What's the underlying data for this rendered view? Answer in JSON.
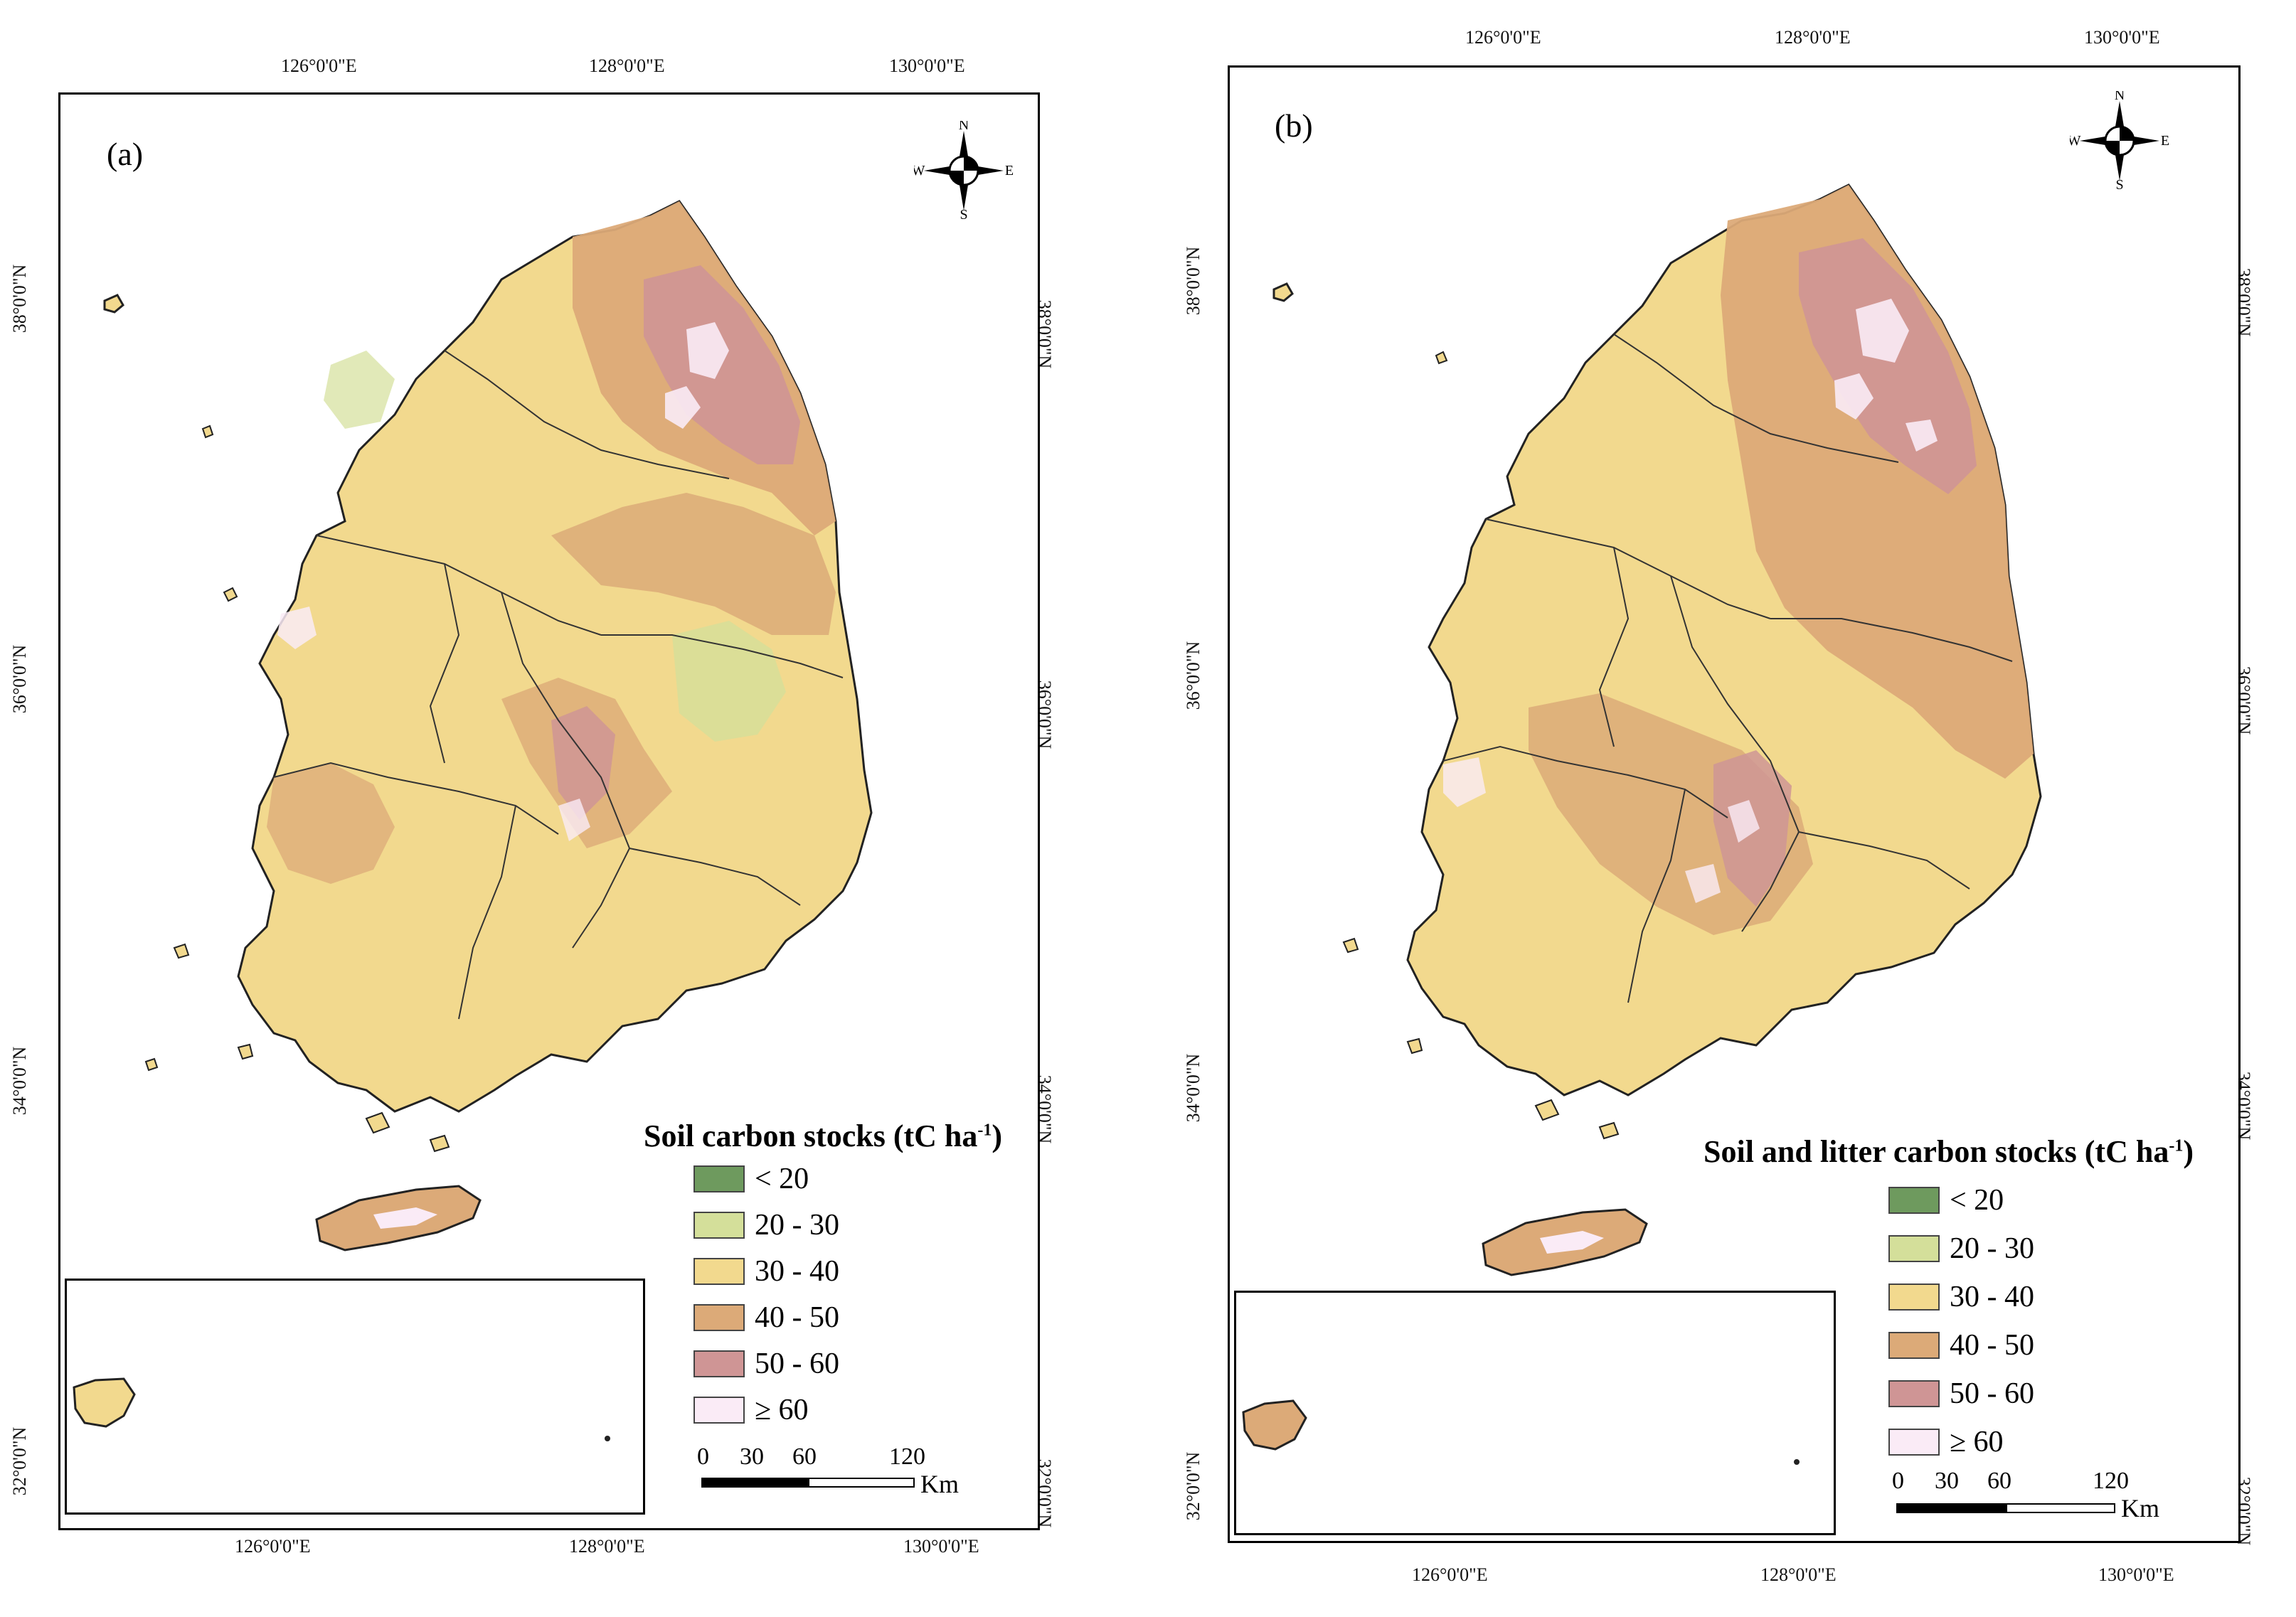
{
  "colors": {
    "c_lt20": "#6e9a5e",
    "c_20_30": "#d4df9a",
    "c_30_40": "#f2d98e",
    "c_40_50": "#dcaa78",
    "c_50_60": "#cf9595",
    "c_ge60": "#faebf6",
    "outline": "#222222"
  },
  "axes": {
    "top_ticks": [
      "126°0'0\"E",
      "128°0'0\"E",
      "130°0'0\"E"
    ],
    "bottom_ticks": [
      "126°0'0\"E",
      "128°0'0\"E",
      "130°0'0\"E"
    ],
    "lat_ticks": [
      "38°0'0\"N",
      "36°0'0\"N",
      "34°0'0\"N",
      "32°0'0\"N"
    ]
  },
  "compass": {
    "n": "N",
    "s": "S",
    "e": "E",
    "w": "W"
  },
  "panels": [
    {
      "label": "(a)",
      "legend_title": "Soil carbon stocks (tC ha",
      "legend_sup": "-1",
      "legend_close": ")",
      "legend_items": [
        "< 20",
        "20 - 30",
        "30 - 40",
        "40 - 50",
        "50 - 60",
        "≥ 60"
      ],
      "scale_ticks": [
        "0",
        "30",
        "60",
        "120"
      ],
      "scale_unit": "Km"
    },
    {
      "label": "(b)",
      "legend_title": "Soil and litter carbon stocks (tC ha",
      "legend_sup": "-1",
      "legend_close": ")",
      "legend_items": [
        "< 20",
        "20 - 30",
        "30 - 40",
        "40 - 50",
        "50 - 60",
        "≥ 60"
      ],
      "scale_ticks": [
        "0",
        "30",
        "60",
        "120"
      ],
      "scale_unit": "Km"
    }
  ]
}
